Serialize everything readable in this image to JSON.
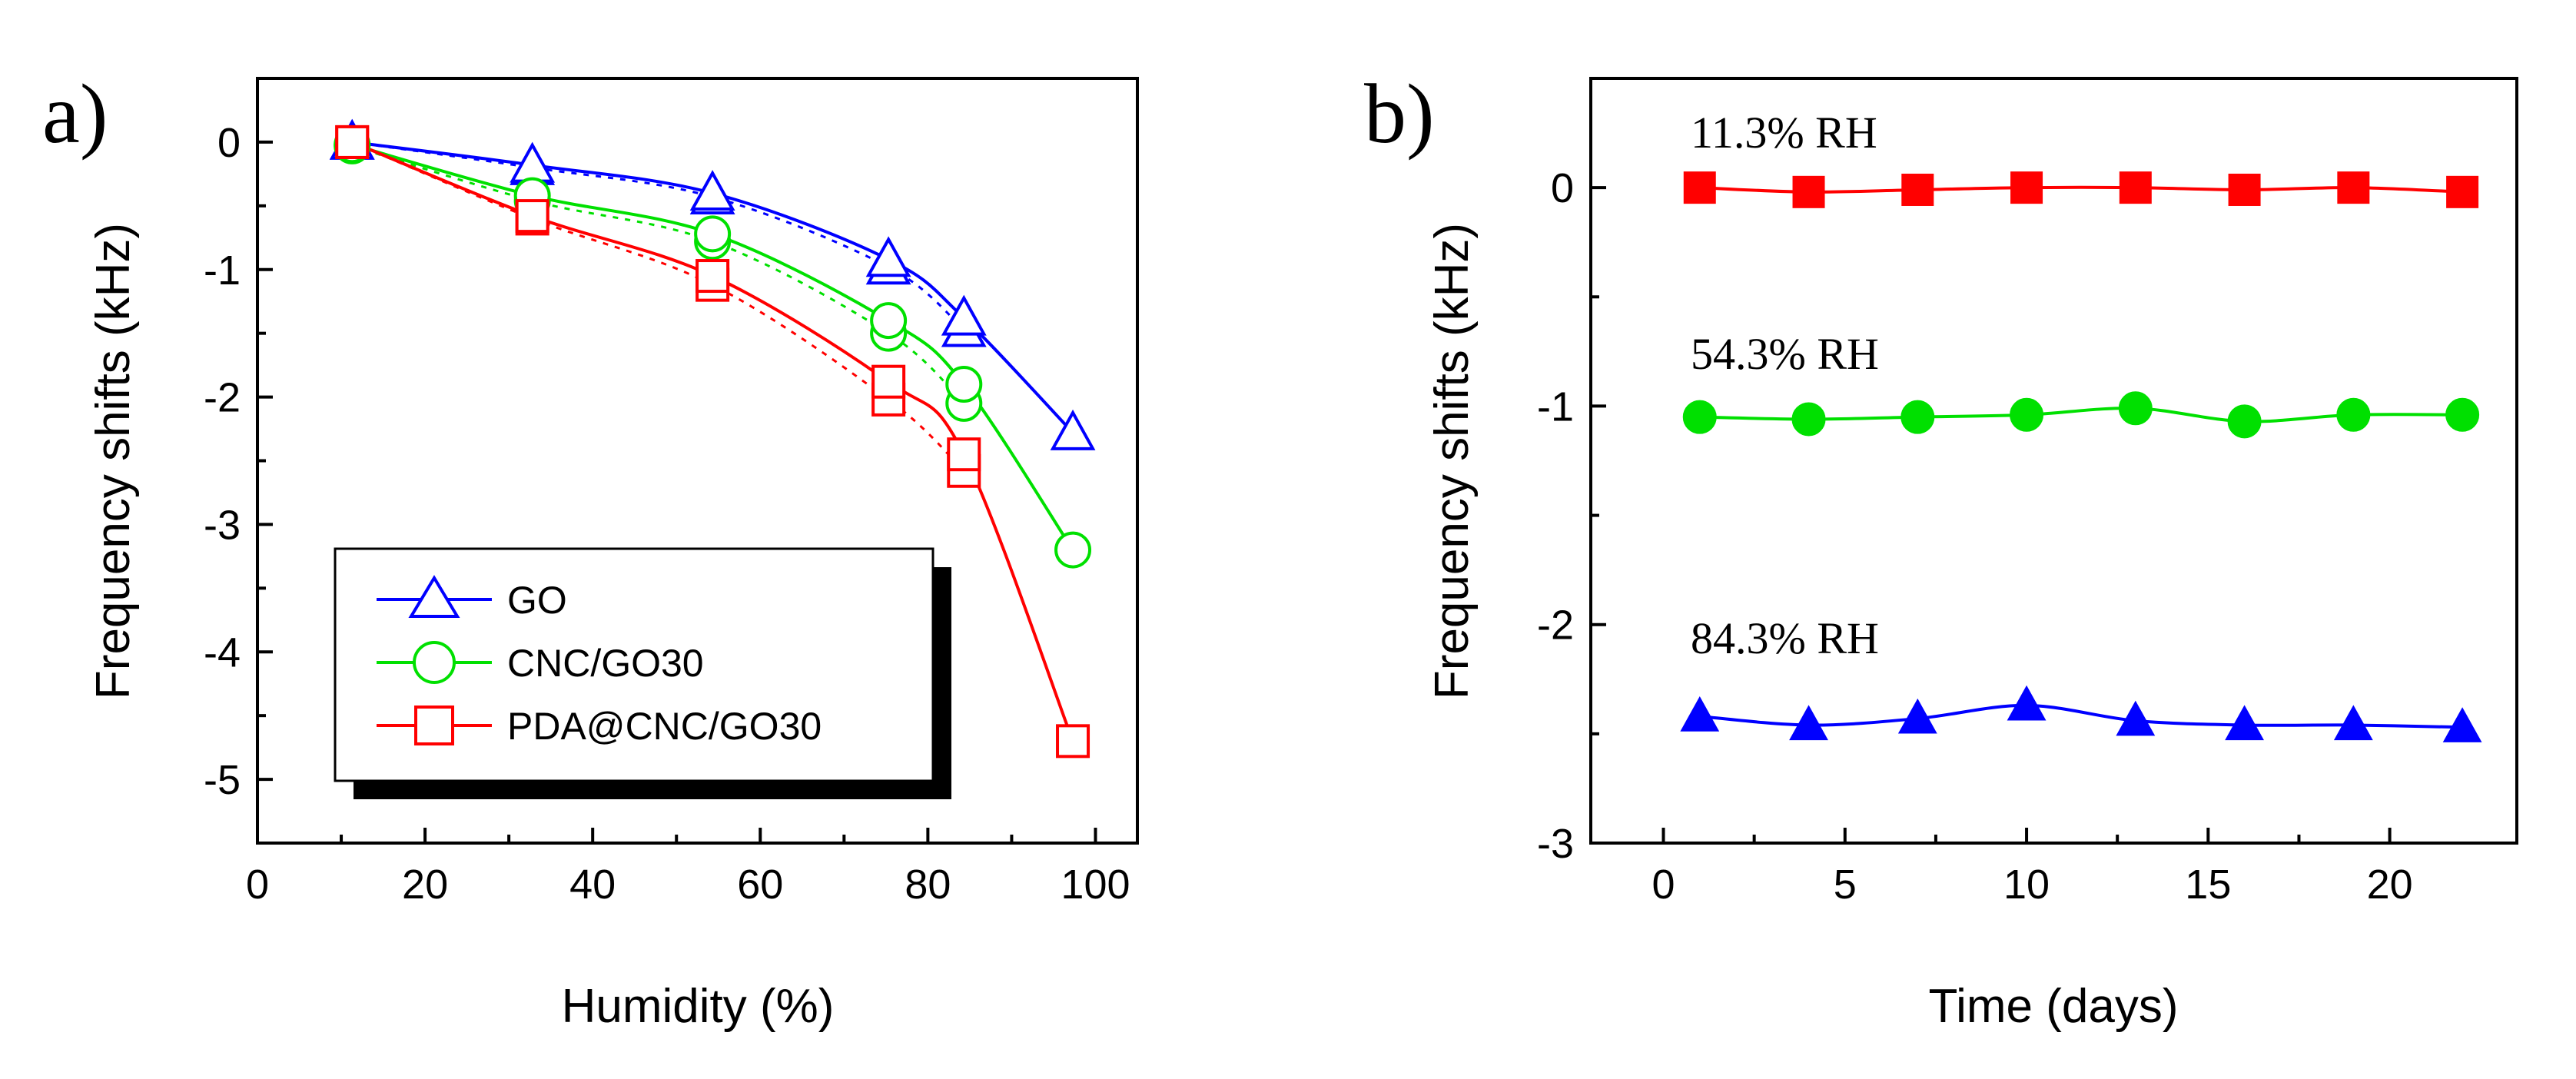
{
  "chart_data": [
    {
      "type": "line",
      "panel_label": "a)",
      "xlabel": "Humidity (%)",
      "ylabel": "Frequency shifts (kHz)",
      "xlim": [
        0,
        105
      ],
      "ylim": [
        -5.5,
        0.5
      ],
      "xticks": [
        "0",
        "20",
        "40",
        "60",
        "80",
        "100"
      ],
      "yticks": [
        "0",
        "-1",
        "-2",
        "-3",
        "-4",
        "-5"
      ],
      "legend_location": "bottom-left",
      "series": [
        {
          "name": "GO",
          "color": "#0000ff",
          "marker": "open-triangle",
          "x": [
            11.3,
            32.8,
            54.3,
            75.3,
            84.3,
            97.3
          ],
          "y": [
            0.0,
            -0.18,
            -0.4,
            -0.92,
            -1.38,
            -2.28
          ],
          "x2": [
            11.3,
            32.8,
            54.3,
            75.3,
            84.3
          ],
          "y2": [
            0.0,
            -0.2,
            -0.43,
            -0.98,
            -1.47
          ]
        },
        {
          "name": "CNC/GO30",
          "color": "#00e000",
          "marker": "open-circle",
          "x": [
            11.3,
            32.8,
            54.3,
            75.3,
            84.3,
            97.3
          ],
          "y": [
            -0.02,
            -0.42,
            -0.72,
            -1.4,
            -1.9,
            -3.2
          ],
          "x2": [
            11.3,
            32.8,
            54.3,
            75.3,
            84.3
          ],
          "y2": [
            -0.03,
            -0.46,
            -0.78,
            -1.5,
            -2.05
          ]
        },
        {
          "name": "PDA@CNC/GO30",
          "color": "#ff0000",
          "marker": "open-square",
          "x": [
            11.3,
            32.8,
            54.3,
            75.3,
            84.3,
            97.3
          ],
          "y": [
            0.0,
            -0.58,
            -1.05,
            -1.88,
            -2.45,
            -4.7
          ],
          "x2": [
            11.3,
            32.8,
            54.3,
            75.3,
            84.3
          ],
          "y2": [
            0.0,
            -0.6,
            -1.12,
            -2.02,
            -2.58
          ]
        }
      ]
    },
    {
      "type": "line",
      "panel_label": "b)",
      "xlabel": "Time (days)",
      "ylabel": "Frequency shifts (kHz)",
      "xlim": [
        -2,
        23.5
      ],
      "ylim": [
        -3,
        0.5
      ],
      "xticks": [
        "0",
        "5",
        "10",
        "15",
        "20"
      ],
      "yticks": [
        "0",
        "-1",
        "-2",
        "-3"
      ],
      "series": [
        {
          "name": "11.3% RH",
          "color": "#ff0000",
          "marker": "filled-square",
          "x": [
            1,
            4,
            7,
            10,
            13,
            16,
            19,
            22
          ],
          "y": [
            0.0,
            -0.02,
            -0.01,
            0.0,
            0.0,
            -0.01,
            0.0,
            -0.02
          ]
        },
        {
          "name": "54.3% RH",
          "color": "#00e000",
          "marker": "filled-circle",
          "x": [
            1,
            4,
            7,
            10,
            13,
            16,
            19,
            22
          ],
          "y": [
            -1.05,
            -1.06,
            -1.05,
            -1.04,
            -1.01,
            -1.07,
            -1.04,
            -1.04
          ]
        },
        {
          "name": "84.3% RH",
          "color": "#0000ff",
          "marker": "filled-triangle",
          "x": [
            1,
            4,
            7,
            10,
            13,
            16,
            19,
            22
          ],
          "y": [
            -2.42,
            -2.46,
            -2.43,
            -2.37,
            -2.44,
            -2.46,
            -2.46,
            -2.47
          ]
        }
      ]
    }
  ]
}
